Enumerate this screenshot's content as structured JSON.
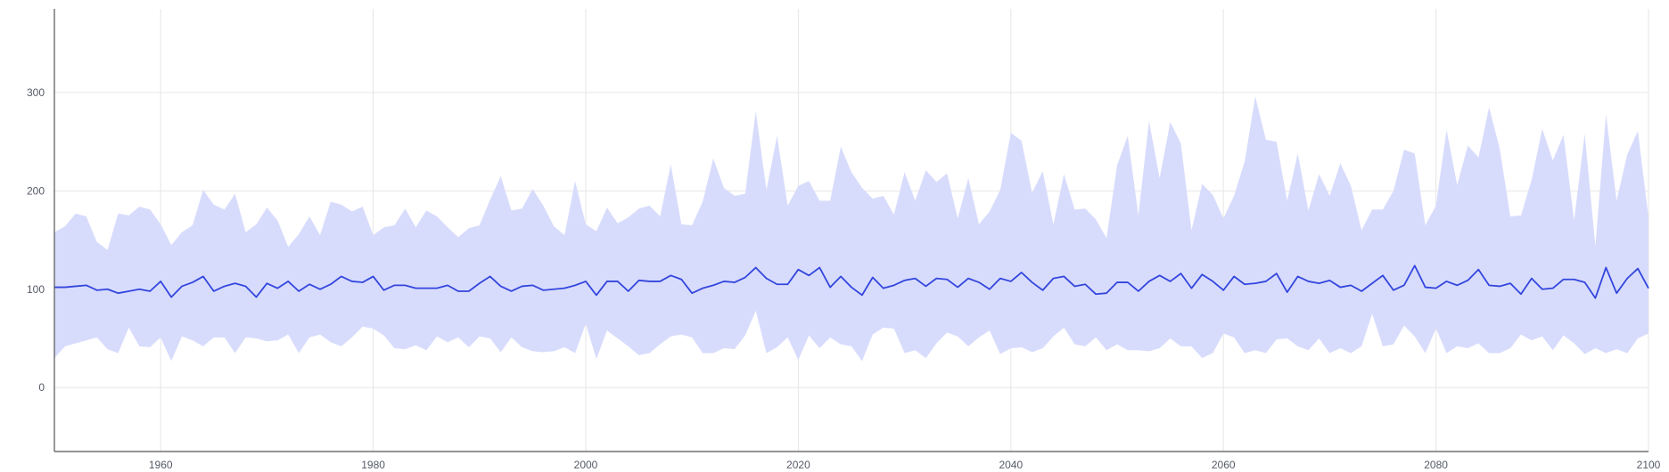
{
  "chart_data": {
    "type": "area",
    "title": "",
    "xlabel": "",
    "ylabel": "",
    "xlim": [
      1950,
      2100
    ],
    "ylim": [
      -65,
      385
    ],
    "xticks": [
      1960,
      1980,
      2000,
      2020,
      2040,
      2060,
      2080,
      2100
    ],
    "yticks": [
      0,
      100,
      200,
      300
    ],
    "grid": true,
    "legend": "none",
    "colors": {
      "band": "#d8dcfc",
      "line": "#3346dd",
      "grid": "#e6e6e6",
      "axis": "#555555",
      "tick_text": "#555a66"
    },
    "x_start": 1950,
    "x_step": 1,
    "series": [
      {
        "kind": "line",
        "values": [
          102,
          102,
          103,
          104,
          99,
          100,
          96,
          98,
          100,
          98,
          108,
          92,
          103,
          107,
          113,
          98,
          103,
          106,
          103,
          92,
          106,
          101,
          108,
          98,
          105,
          100,
          105,
          113,
          108,
          107,
          113,
          99,
          104,
          104,
          101,
          101,
          101,
          104,
          98,
          98,
          106,
          113,
          103,
          98,
          103,
          104,
          99,
          100,
          101,
          104,
          108,
          94,
          108,
          108,
          98,
          109,
          108,
          108,
          114,
          110,
          96,
          101,
          104,
          108,
          107,
          112,
          122,
          111,
          105,
          105,
          120,
          114,
          122,
          102,
          113,
          102,
          94,
          112,
          101,
          104,
          109,
          111,
          103,
          111,
          110,
          102,
          111,
          107,
          100,
          111,
          108,
          117,
          107,
          99,
          111,
          113,
          103,
          105,
          95,
          96,
          107,
          107,
          98,
          108,
          114,
          108,
          116,
          101,
          115,
          108,
          99,
          113,
          105,
          106,
          108,
          116,
          97,
          113,
          108,
          106,
          109,
          102,
          104,
          98,
          106,
          114,
          99,
          104,
          124,
          102,
          101,
          108,
          104,
          109,
          120,
          104,
          103,
          106,
          95,
          111,
          100,
          101,
          110,
          110,
          107,
          91,
          122,
          96,
          111,
          121,
          101
        ],
        "color": "#3346dd"
      },
      {
        "kind": "band_upper",
        "values": [
          158,
          164,
          177,
          174,
          148,
          140,
          177,
          175,
          184,
          181,
          166,
          145,
          158,
          165,
          201,
          186,
          181,
          197,
          158,
          166,
          183,
          170,
          143,
          156,
          174,
          155,
          189,
          186,
          179,
          184,
          155,
          163,
          165,
          182,
          163,
          180,
          174,
          163,
          153,
          162,
          165,
          191,
          215,
          180,
          182,
          202,
          185,
          164,
          155,
          210,
          166,
          159,
          183,
          167,
          173,
          182,
          185,
          174,
          227,
          166,
          165,
          189,
          233,
          203,
          195,
          197,
          281,
          201,
          256,
          185,
          205,
          210,
          190,
          190,
          245,
          219,
          203,
          192,
          195,
          176,
          219,
          190,
          221,
          209,
          218,
          172,
          213,
          166,
          179,
          201,
          259,
          251,
          198,
          220,
          166,
          217,
          181,
          182,
          171,
          152,
          226,
          256,
          175,
          271,
          213,
          270,
          248,
          160,
          207,
          196,
          172,
          195,
          230,
          296,
          252,
          250,
          190,
          238,
          180,
          217,
          195,
          228,
          205,
          160,
          181,
          181,
          200,
          242,
          238,
          165,
          185,
          262,
          206,
          246,
          234,
          285,
          243,
          174,
          175,
          211,
          263,
          231,
          257,
          170,
          258,
          144,
          278,
          190,
          237,
          261,
          173
        ],
        "color": "#d8dcfc"
      },
      {
        "kind": "band_lower",
        "values": [
          30,
          42,
          45,
          48,
          51,
          39,
          35,
          61,
          42,
          41,
          51,
          27,
          52,
          48,
          42,
          51,
          51,
          35,
          51,
          50,
          47,
          48,
          54,
          35,
          51,
          54,
          46,
          42,
          51,
          62,
          60,
          53,
          40,
          39,
          43,
          38,
          52,
          46,
          51,
          41,
          52,
          50,
          36,
          51,
          41,
          37,
          36,
          37,
          41,
          35,
          65,
          29,
          58,
          50,
          42,
          33,
          35,
          44,
          52,
          54,
          51,
          35,
          35,
          40,
          39,
          53,
          78,
          35,
          41,
          51,
          28,
          53,
          40,
          51,
          44,
          42,
          27,
          54,
          61,
          60,
          35,
          38,
          30,
          45,
          56,
          52,
          42,
          51,
          58,
          34,
          40,
          41,
          36,
          40,
          52,
          61,
          44,
          42,
          51,
          38,
          44,
          38,
          38,
          37,
          40,
          50,
          42,
          42,
          30,
          35,
          55,
          51,
          35,
          38,
          35,
          49,
          50,
          42,
          38,
          50,
          35,
          40,
          35,
          42,
          75,
          42,
          44,
          63,
          52,
          35,
          60,
          35,
          42,
          40,
          45,
          35,
          35,
          40,
          54,
          48,
          52,
          38,
          53,
          45,
          34,
          40,
          35,
          39,
          35,
          50,
          55
        ],
        "color": "#d8dcfc"
      }
    ]
  }
}
